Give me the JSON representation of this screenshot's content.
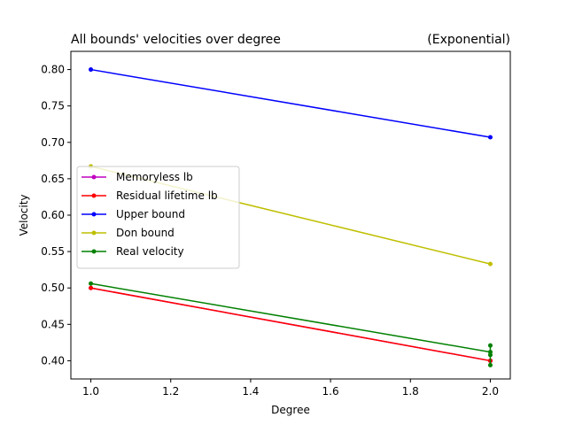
{
  "chart_data": {
    "type": "line",
    "title_left": "All bounds' velocities over degree",
    "title_right": "(Exponential)",
    "xlabel": "Degree",
    "ylabel": "Velocity",
    "xlim": [
      0.95,
      2.05
    ],
    "ylim": [
      0.375,
      0.825
    ],
    "x_ticks": [
      1.0,
      1.2,
      1.4,
      1.6,
      1.8,
      2.0
    ],
    "x_tick_labels": [
      "1.0",
      "1.2",
      "1.4",
      "1.6",
      "1.8",
      "2.0"
    ],
    "y_ticks": [
      0.4,
      0.45,
      0.5,
      0.55,
      0.6,
      0.65,
      0.7,
      0.75,
      0.8
    ],
    "y_tick_labels": [
      "0.40",
      "0.45",
      "0.50",
      "0.55",
      "0.60",
      "0.65",
      "0.70",
      "0.75",
      "0.80"
    ],
    "grid": false,
    "legend_position": "center-left",
    "series": [
      {
        "name": "Memoryless lb",
        "color": "#bf00bf",
        "x": [
          1.0,
          2.0
        ],
        "y": [
          0.5,
          0.4
        ]
      },
      {
        "name": "Residual lifetime lb",
        "color": "#ff0000",
        "x": [
          1.0,
          2.0
        ],
        "y": [
          0.5,
          0.4
        ]
      },
      {
        "name": "Upper bound",
        "color": "#0000ff",
        "x": [
          1.0,
          2.0
        ],
        "y": [
          0.8,
          0.707
        ]
      },
      {
        "name": "Don bound",
        "color": "#bfbf00",
        "x": [
          1.0,
          2.0
        ],
        "y": [
          0.667,
          0.533
        ]
      },
      {
        "name": "Real velocity",
        "color": "#008000",
        "x": [
          1.0,
          2.0,
          2.0,
          2.0,
          2.0
        ],
        "y": [
          0.506,
          0.412,
          0.421,
          0.408,
          0.394
        ]
      }
    ]
  }
}
